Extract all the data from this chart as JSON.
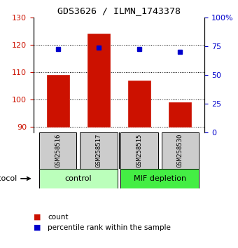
{
  "title": "GDS3626 / ILMN_1743378",
  "samples": [
    "GSM258516",
    "GSM258517",
    "GSM258515",
    "GSM258530"
  ],
  "bar_values": [
    109,
    124,
    107,
    99
  ],
  "bar_bottom": 90,
  "bar_color": "#cc1100",
  "percentile_values": [
    118.5,
    119.0,
    118.5,
    117.5
  ],
  "percentile_color": "#0000cc",
  "ylim_left": [
    88,
    130
  ],
  "ylim_right": [
    0,
    100
  ],
  "yticks_left": [
    90,
    100,
    110,
    120,
    130
  ],
  "yticks_right": [
    0,
    25,
    50,
    75,
    100
  ],
  "ytick_labels_right": [
    "0",
    "25",
    "50",
    "75",
    "100%"
  ],
  "groups": [
    {
      "label": "control",
      "start": 0,
      "end": 2,
      "color": "#bbffbb"
    },
    {
      "label": "MIF depletion",
      "start": 2,
      "end": 4,
      "color": "#44ee44"
    }
  ],
  "protocol_label": "protocol",
  "legend_count_label": "count",
  "legend_pct_label": "percentile rank within the sample",
  "bar_width": 0.55,
  "grid_color": "#000000",
  "plot_bg": "#ffffff",
  "label_box_color": "#cccccc"
}
